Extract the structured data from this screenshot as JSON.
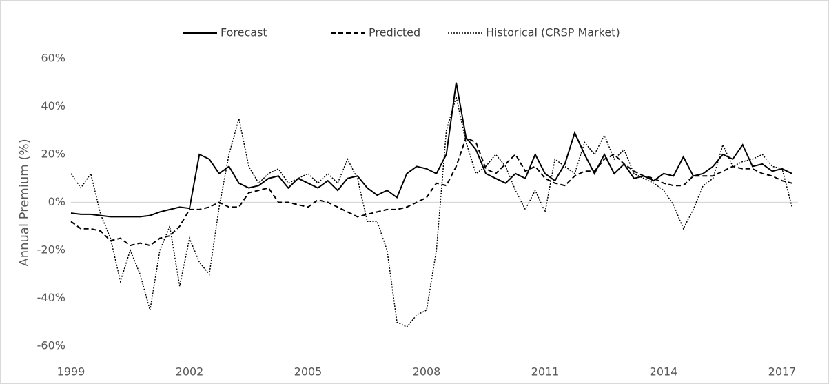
{
  "chart_data": {
    "type": "line",
    "y_label": "Annual Premium (%)",
    "x": [
      1999,
      1999.25,
      1999.5,
      1999.75,
      2000,
      2000.25,
      2000.5,
      2000.75,
      2001,
      2001.25,
      2001.5,
      2001.75,
      2002,
      2002.25,
      2002.5,
      2002.75,
      2003,
      2003.25,
      2003.5,
      2003.75,
      2004,
      2004.25,
      2004.5,
      2004.75,
      2005,
      2005.25,
      2005.5,
      2005.75,
      2006,
      2006.25,
      2006.5,
      2006.75,
      2007,
      2007.25,
      2007.5,
      2007.75,
      2008,
      2008.25,
      2008.5,
      2008.75,
      2009,
      2009.25,
      2009.5,
      2009.75,
      2010,
      2010.25,
      2010.5,
      2010.75,
      2011,
      2011.25,
      2011.5,
      2011.75,
      2012,
      2012.25,
      2012.5,
      2012.75,
      2013,
      2013.25,
      2013.5,
      2013.75,
      2014,
      2014.25,
      2014.5,
      2014.75,
      2015,
      2015.25,
      2015.5,
      2015.75,
      2016,
      2016.25,
      2016.5,
      2016.75,
      2017,
      2017.25
    ],
    "series": [
      {
        "name": "Forecast",
        "color": "#000000",
        "style": "solid",
        "values": [
          -4.5,
          -5,
          -5,
          -5.5,
          -6,
          -6,
          -6,
          -6,
          -5.5,
          -4,
          -3,
          -2,
          -2.5,
          20,
          18,
          12,
          15,
          8,
          6,
          7,
          10,
          11,
          6,
          10,
          8,
          6,
          9,
          5,
          10,
          11,
          6,
          3,
          5,
          2,
          12,
          15,
          14,
          12,
          20,
          50,
          27,
          22,
          12,
          10,
          8,
          12,
          10,
          20,
          12,
          9,
          16,
          29,
          20,
          12,
          20,
          12,
          16,
          10,
          11,
          9,
          12,
          11,
          19,
          11,
          12,
          15,
          20,
          18,
          24,
          15,
          16,
          13,
          14,
          12
        ]
      },
      {
        "name": "Predicted",
        "color": "#000000",
        "style": "dashed",
        "values": [
          -8,
          -11,
          -11,
          -12,
          -16,
          -15,
          -18,
          -17,
          -18,
          -15,
          -14,
          -10,
          -3,
          -3,
          -2,
          0,
          -2,
          -2,
          4,
          5,
          6,
          0,
          0,
          -1,
          -2,
          1,
          0,
          -2,
          -4,
          -6,
          -5,
          -4,
          -3,
          -3,
          -2,
          0,
          2,
          8,
          7,
          15,
          27,
          25,
          14,
          12,
          16,
          20,
          13,
          15,
          10,
          8,
          7,
          11,
          13,
          13,
          18,
          20,
          16,
          13,
          11,
          10,
          8,
          7,
          7,
          11,
          11,
          11,
          13,
          15,
          14,
          14,
          12,
          11,
          9,
          8
        ]
      },
      {
        "name": "Historical (CRSP Market)",
        "color": "#000000",
        "style": "dotted",
        "values": [
          12,
          6,
          12,
          -5,
          -15,
          -33,
          -20,
          -30,
          -45,
          -20,
          -10,
          -35,
          -15,
          -25,
          -30,
          -2,
          20,
          35,
          15,
          8,
          12,
          14,
          8,
          10,
          12,
          8,
          12,
          8,
          18,
          10,
          -8,
          -8,
          -20,
          -50,
          -52,
          -47,
          -45,
          -20,
          30,
          44,
          25,
          12,
          15,
          20,
          15,
          5,
          -3,
          5,
          -4,
          18,
          15,
          12,
          25,
          20,
          28,
          18,
          22,
          12,
          10,
          8,
          5,
          -1,
          -11,
          -3,
          7,
          10,
          24,
          15,
          17,
          18,
          20,
          15,
          14,
          -2
        ]
      }
    ],
    "xlim": [
      1999,
      2017.4
    ],
    "xticks": [
      1999,
      2002,
      2005,
      2008,
      2011,
      2014,
      2017
    ],
    "ylim": [
      -60,
      60
    ],
    "yticks": [
      {
        "value": -60,
        "label": "-60%"
      },
      {
        "value": -40,
        "label": "-40%"
      },
      {
        "value": -20,
        "label": "-20%"
      },
      {
        "value": 0,
        "label": "0%"
      },
      {
        "value": 20,
        "label": "20%"
      },
      {
        "value": 40,
        "label": "40%"
      },
      {
        "value": 60,
        "label": "60%"
      }
    ],
    "legend": "top"
  }
}
